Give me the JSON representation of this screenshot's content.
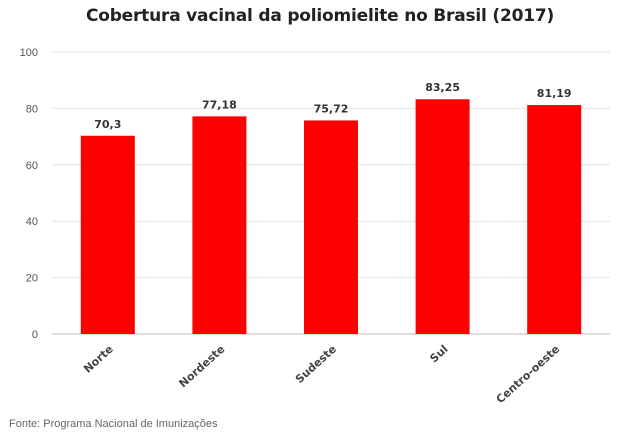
{
  "chart_data": {
    "type": "bar",
    "title": "Cobertura vacinal da poliomielite no Brasil (2017)",
    "categories": [
      "Norte",
      "Nordeste",
      "Sudeste",
      "Sul",
      "Centro-oeste"
    ],
    "values": [
      70.3,
      77.18,
      75.72,
      83.25,
      81.19
    ],
    "value_labels": [
      "70,3",
      "77,18",
      "75,72",
      "83,25",
      "81,19"
    ],
    "ylim": [
      0,
      100
    ],
    "yticks": [
      0,
      20,
      40,
      60,
      80,
      100
    ],
    "grid": true,
    "bar_color": "#ff0000",
    "legend": "none"
  },
  "source": "Fonte: Programa Nacional de Imunizações"
}
